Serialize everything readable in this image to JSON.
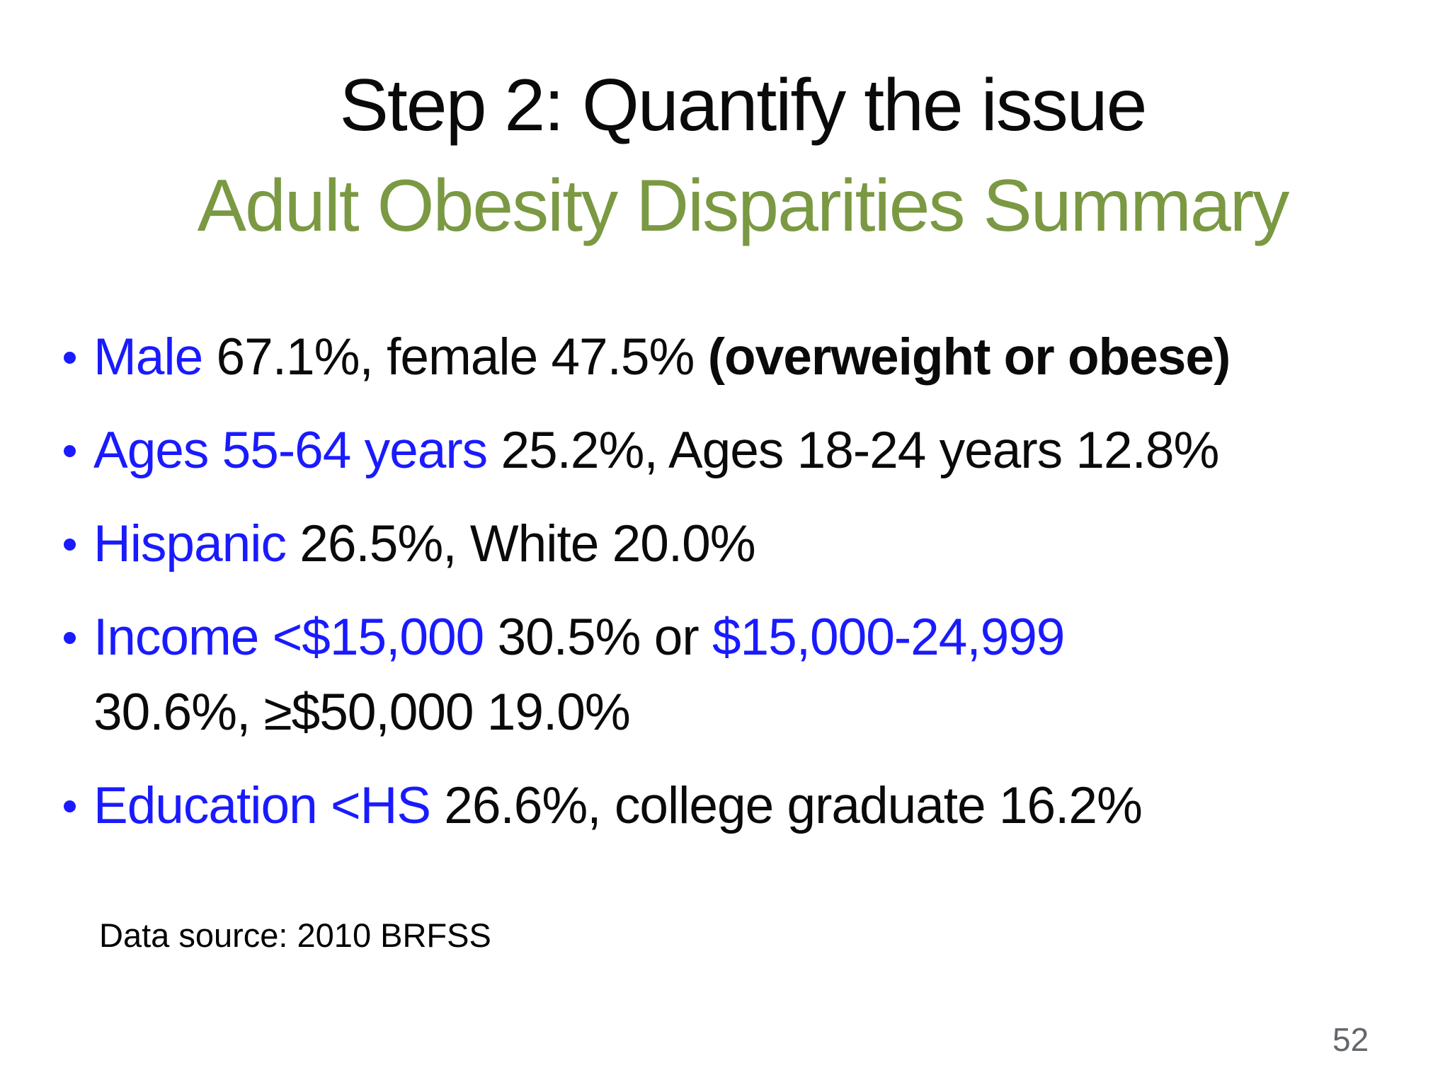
{
  "slide": {
    "title": "Step 2: Quantify the issue",
    "subtitle": "Adult Obesity Disparities Summary",
    "bullets": [
      {
        "segments": [
          {
            "text": "Male",
            "style": "blue"
          },
          {
            "text": " 67.1%, female 47.5% ",
            "style": "black"
          },
          {
            "text": "(overweight or obese)",
            "style": "bold"
          }
        ]
      },
      {
        "segments": [
          {
            "text": "Ages 55-64 years",
            "style": "blue"
          },
          {
            "text": " 25.2%, Ages 18-24 years 12.8%",
            "style": "black"
          }
        ]
      },
      {
        "segments": [
          {
            "text": "Hispanic",
            "style": "blue"
          },
          {
            "text": " 26.5%, White 20.0%",
            "style": "black"
          }
        ]
      },
      {
        "segments": [
          {
            "text": "Income <$15,000",
            "style": "blue"
          },
          {
            "text": " 30.5% or ",
            "style": "black"
          },
          {
            "text": "$15,000-24,999",
            "style": "blue"
          },
          {
            "text": "30.6%, ≥$50,000 19.0%",
            "style": "black"
          }
        ]
      },
      {
        "segments": [
          {
            "text": "Education <HS",
            "style": "blue"
          },
          {
            "text": " 26.6%, college graduate 16.2%",
            "style": "black"
          }
        ]
      }
    ],
    "data_source": "Data source: 2010 BRFSS",
    "page_number": "52",
    "colors": {
      "accent_blue": "#1a1aff",
      "heading_green": "#7a9942",
      "text_black": "#0a0a0a",
      "page_number_gray": "#63666b",
      "background": "#ffffff"
    }
  }
}
